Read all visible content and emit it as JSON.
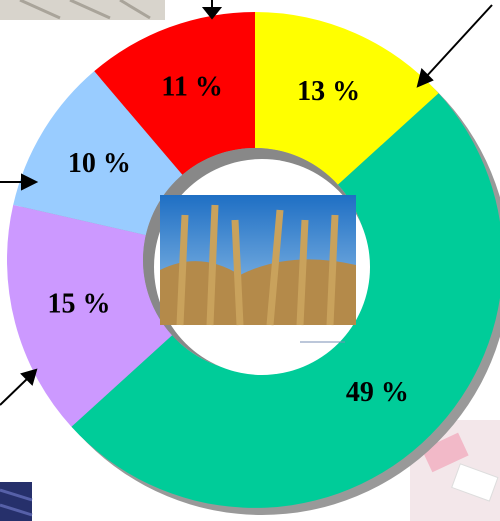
{
  "chart_data": {
    "type": "donut",
    "categories": [
      null,
      null,
      null,
      null,
      null
    ],
    "values": [
      13,
      49,
      15,
      10,
      11
    ],
    "value_labels": [
      "13 %",
      "49 %",
      "15 %",
      "10 %",
      "11 %"
    ],
    "colors": [
      "#ffff00",
      "#00cc99",
      "#cc99ff",
      "#99ccff",
      "#ff0000"
    ]
  }
}
